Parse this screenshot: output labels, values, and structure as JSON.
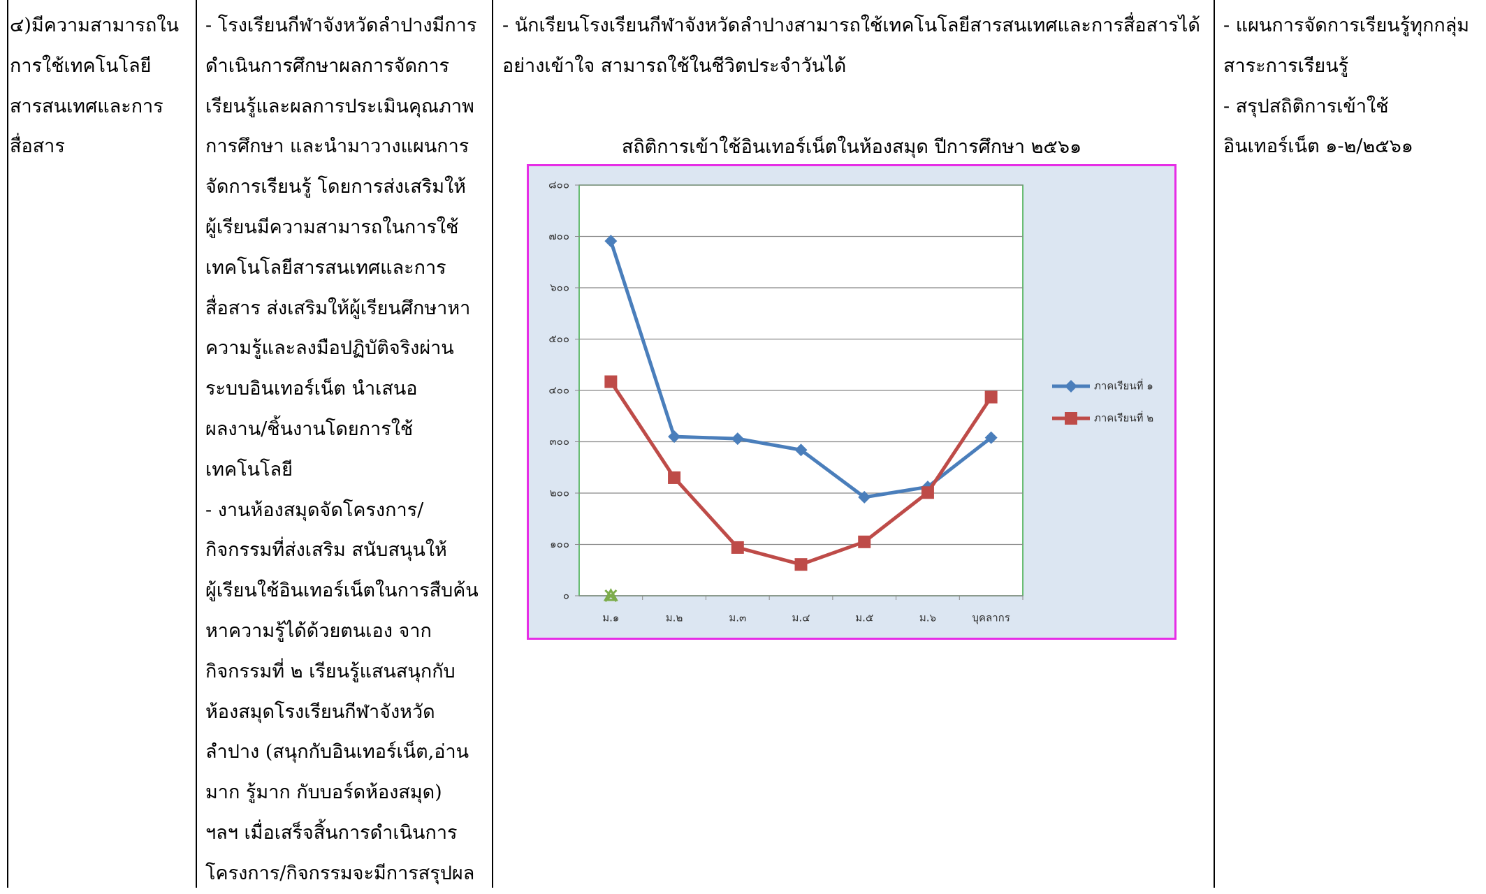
{
  "table": {
    "rows": [
      {
        "cells": [
          {
            "lines": [
              " ๔)มีความสามารถใน",
              "การใช้เทคโนโลยี",
              "สารสนเทศและการ",
              "สื่อสาร"
            ]
          },
          {
            "lines": [
              "- โรงเรียนกีฬาจังหวัดลำปางมีการ",
              "ดำเนินการศึกษาผลการจัดการ",
              "เรียนรู้และผลการประเมินคุณภาพ",
              "การศึกษา และนำมาวางแผนการ",
              "จัดการเรียนรู้ โดยการส่งเสริมให้",
              "ผู้เรียนมีความสามารถในการใช้",
              "เทคโนโลยีสารสนเทศและการ",
              "สื่อสาร  ส่งเสริมให้ผู้เรียนศึกษาหา",
              "ความรู้และลงมือปฏิบัติจริงผ่าน",
              "ระบบอินเทอร์เน็ต  นำเสนอ",
              "ผลงาน/ชิ้นงานโดยการใช้",
              "เทคโนโลยี",
              "- งานห้องสมุดจัดโครงการ/",
              "กิจกรรมที่ส่งเสริม สนับสนุนให้",
              "ผู้เรียนใช้อินเทอร์เน็ตในการสืบค้น",
              "หาความรู้ได้ด้วยตนเอง จาก",
              "กิจกรรมที่ ๒ เรียนรู้แสนสนุกกับ",
              "ห้องสมุดโรงเรียนกีฬาจังหวัด",
              "ลำปาง (สนุกกับอินเทอร์เน็ต,อ่าน",
              "มาก รู้มาก กับบอร์ดห้องสมุด)",
              "ฯลฯ  เมื่อเสร็จสิ้นการดำเนินการ",
              "โครงการ/กิจกรรมจะมีการสรุปผล"
            ]
          },
          {
            "lines": [
              "- นักเรียนโรงเรียนกีฬาจังหวัดลำปางสามารถใช้เทคโนโลยีสารสนเทศและการสื่อสารได้",
              "อย่างเข้าใจ สามารถใช้ในชีวิตประจำวันได้"
            ]
          },
          {
            "lines": [
              "- แผนการจัดการเรียนรู้ทุกกลุ่ม",
              "สาระการเรียนรู้",
              "- สรุปสถิติการเข้าใช้",
              "อินเทอร์เน็ต ๑-๒/๒๕๖๑"
            ]
          }
        ]
      }
    ]
  },
  "chart_data": {
    "type": "line",
    "title": "สถิติการเข้าใช้อินเทอร์เน็ตในห้องสมุด ปีการศึกษา ๒๕๖๑",
    "categories": [
      "ม.๑",
      "ม.๒",
      "ม.๓",
      "ม.๔",
      "ม.๕",
      "ม.๖",
      "บุคลากร"
    ],
    "series": [
      {
        "name": "ภาคเรียนที่ ๑",
        "color": "#4a7ebb",
        "marker": "diamond",
        "values": [
          691,
          310,
          306,
          284,
          192,
          212,
          308
        ]
      },
      {
        "name": "ภาคเรียนที่ ๒",
        "color": "#be4b48",
        "marker": "square",
        "values": [
          417,
          230,
          94,
          61,
          105,
          201,
          387
        ]
      },
      {
        "color": "#7cac4a",
        "marker": "x",
        "values": [
          0,
          null,
          null,
          null,
          null,
          null,
          null
        ]
      }
    ],
    "ylim": [
      0,
      800
    ],
    "yticks": [
      {
        "value": 0,
        "label": "๐"
      },
      {
        "value": 100,
        "label": "๑๐๐"
      },
      {
        "value": 200,
        "label": "๒๐๐"
      },
      {
        "value": 300,
        "label": "๓๐๐"
      },
      {
        "value": 400,
        "label": "๔๐๐"
      },
      {
        "value": 500,
        "label": "๕๐๐"
      },
      {
        "value": 600,
        "label": "๖๐๐"
      },
      {
        "value": 700,
        "label": "๗๐๐"
      },
      {
        "value": 800,
        "label": "๘๐๐"
      }
    ],
    "grid": true,
    "legend": "right"
  }
}
